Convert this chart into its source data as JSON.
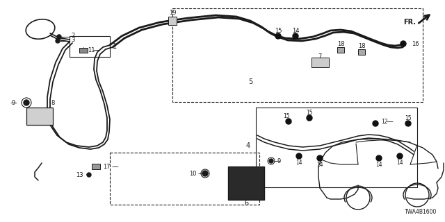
{
  "bg_color": "#ffffff",
  "line_color": "#1a1a1a",
  "diagram_code": "TWA4B1600",
  "fig_w": 6.4,
  "fig_h": 3.2,
  "dpi": 100
}
